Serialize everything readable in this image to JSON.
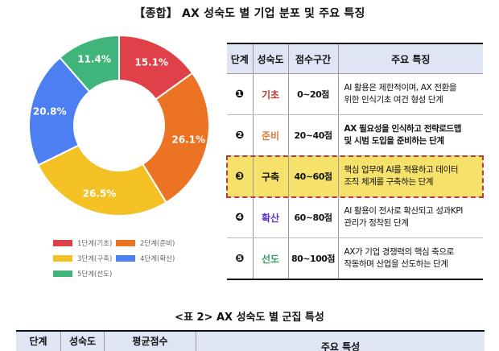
{
  "title": "【종합】 AX 성숙도 별 기업 분포 및 주요 특징",
  "chart_data": {
    "type": "pie",
    "variant": "donut",
    "title": "",
    "categories": [
      "1단계(기초)",
      "2단계(준비)",
      "3단계(구축)",
      "4단계(확산)",
      "5단계(선도)"
    ],
    "values": [
      15.1,
      26.1,
      26.5,
      20.8,
      11.4
    ],
    "labels": [
      "15.1%",
      "26.1%",
      "26.5%",
      "20.8%",
      "11.4%"
    ],
    "colors": [
      "#e04148",
      "#ec7323",
      "#f4c125",
      "#4b7ff2",
      "#3fb57b"
    ],
    "legend_position": "bottom"
  },
  "legend": [
    {
      "label": "1단계(기초)",
      "color": "#e04148"
    },
    {
      "label": "2단계(준비)",
      "color": "#ec7323"
    },
    {
      "label": "3단계(구축)",
      "color": "#f4c125"
    },
    {
      "label": "4단계(확산)",
      "color": "#4b7ff2"
    },
    {
      "label": "5단계(선도)",
      "color": "#3fb57b"
    }
  ],
  "stages_table": {
    "headers": [
      "단계",
      "성숙도",
      "점수구간",
      "주요 특징"
    ],
    "rows": [
      {
        "num": "❶",
        "level": "기초",
        "level_color": "#c0392b",
        "range": "0~20점",
        "desc1": "AI 활용은 제한적이며, AX 전환을",
        "desc2": "위한 인식기초 여건 형성 단계",
        "bold": false
      },
      {
        "num": "❷",
        "level": "준비",
        "level_color": "#e07a3a",
        "range": "20~40점",
        "desc1": "AX 필요성을 인식하고 전략로드맵",
        "desc2": "및 시범 도입을 준비하는 단계",
        "bold": true
      },
      {
        "num": "❸",
        "level": "구축",
        "level_color": "#111111",
        "range": "40~60점",
        "desc1": "핵심 업무에 AI를 적용하고 데이터",
        "desc2": "조직 체계를 구축하는 단계",
        "bold": false
      },
      {
        "num": "❹",
        "level": "확산",
        "level_color": "#5b2fc9",
        "range": "60~80점",
        "desc1": "AI 활용이 전사로 확산되고 성과KPI",
        "desc2": "관리가 정착된 단계",
        "bold": false
      },
      {
        "num": "❺",
        "level": "선도",
        "level_color": "#3a9a6a",
        "range": "80~100점",
        "desc1": "AX가 기업 경쟁력의 핵심 축으로",
        "desc2": "작동하며 산업을 선도하는 단계",
        "bold": false
      }
    ]
  },
  "table2": {
    "title": "<표 2> AX 성숙도 별 군집 특성",
    "headers": [
      "단계",
      "성숙도",
      "평균점수",
      "주요 특성"
    ]
  }
}
